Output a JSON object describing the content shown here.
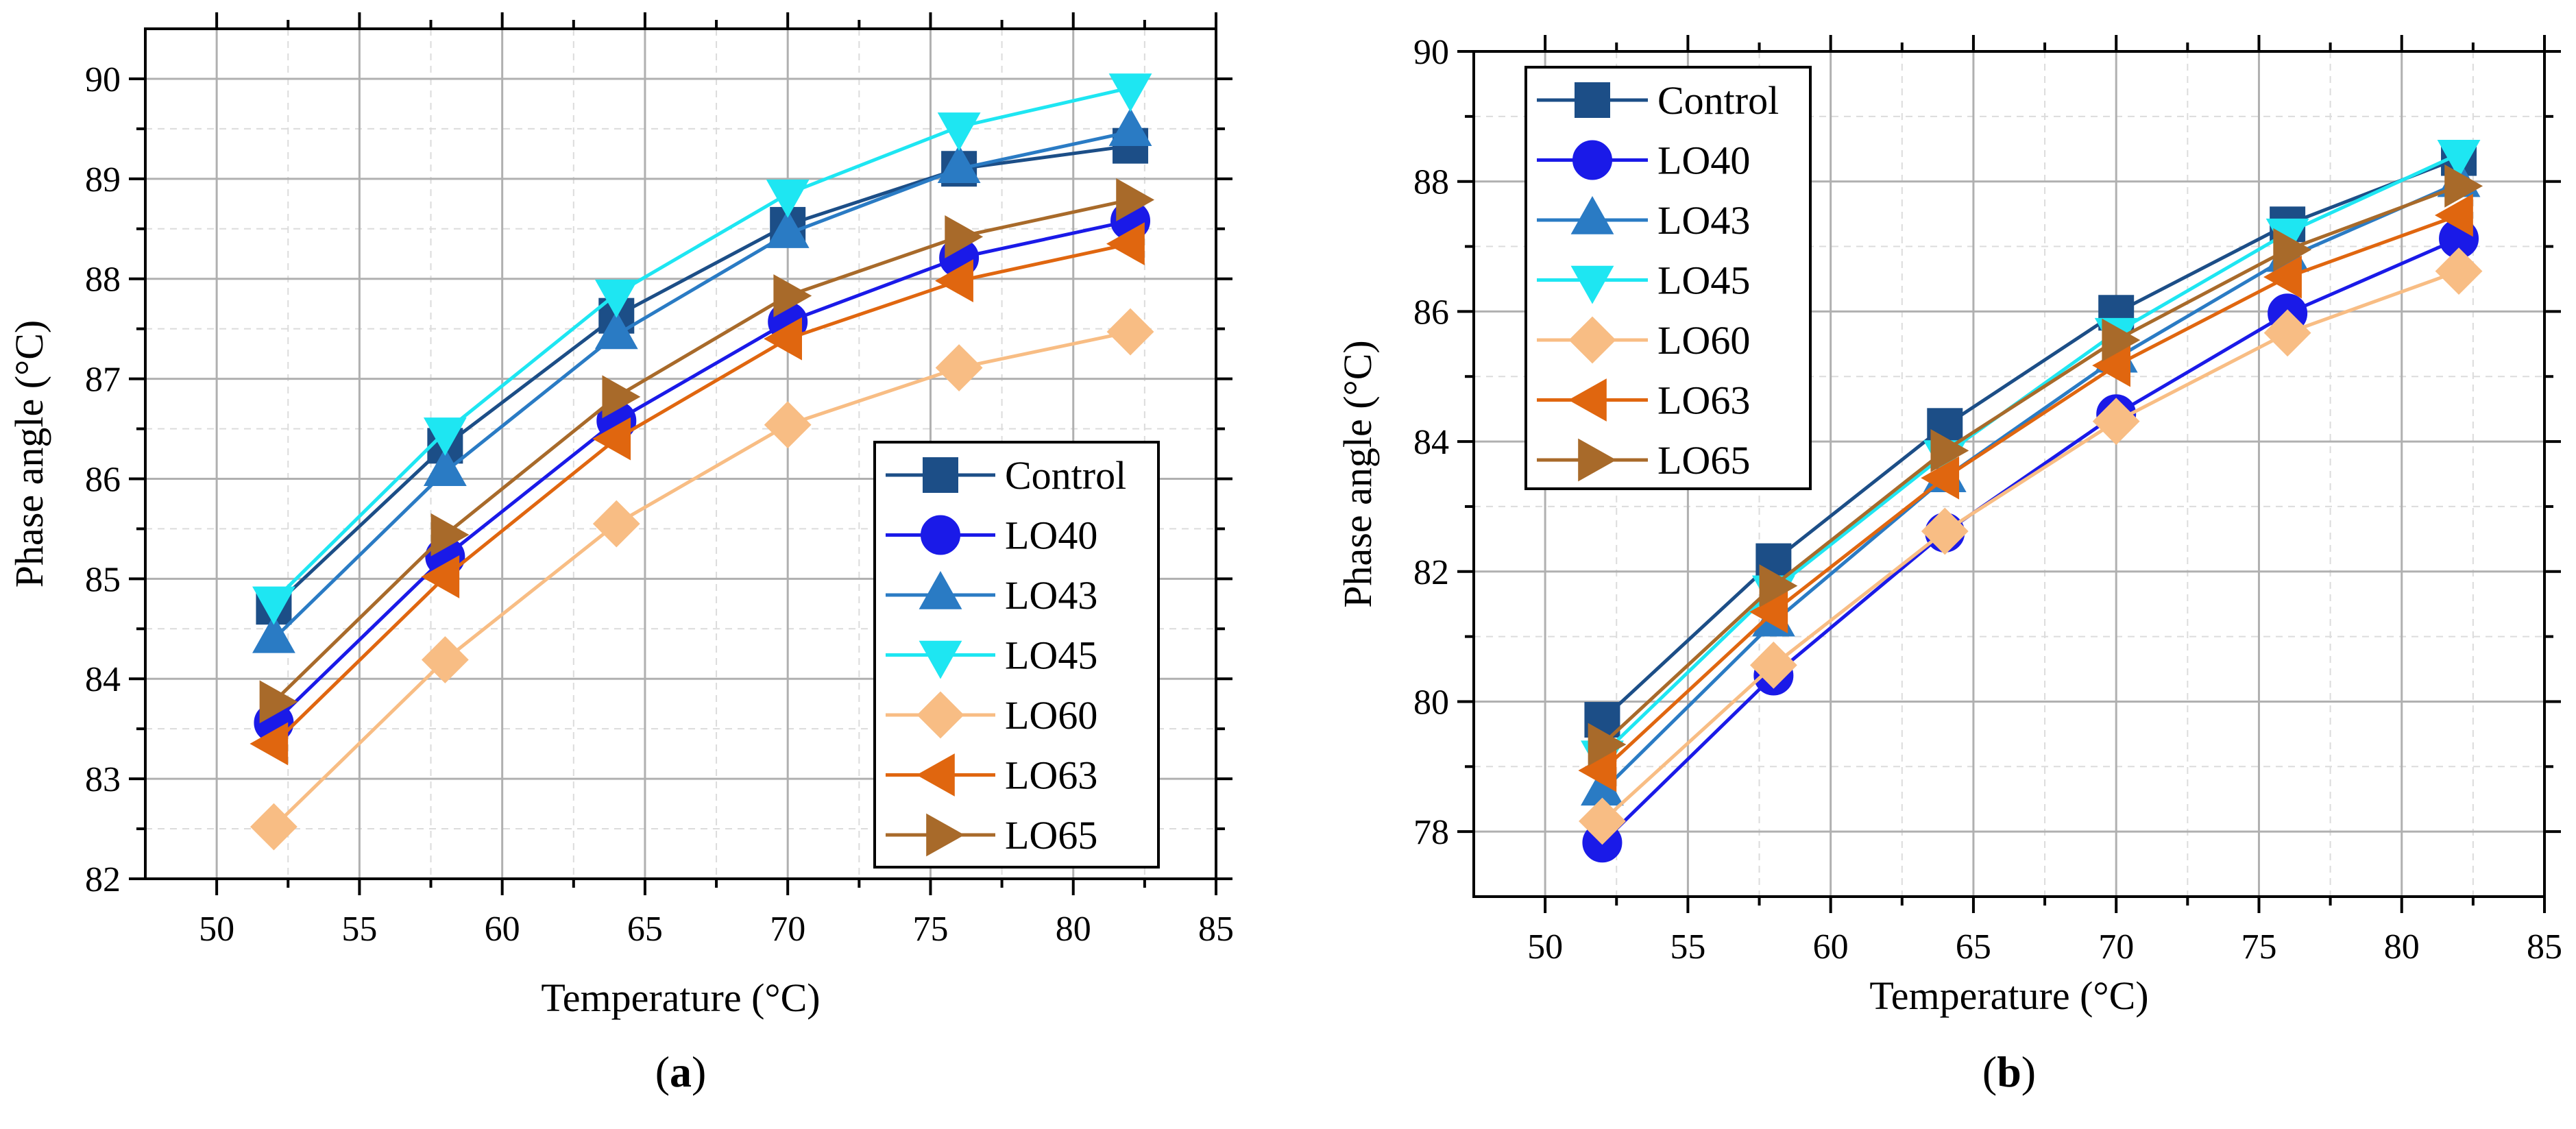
{
  "figure": {
    "background": "#ffffff",
    "grid_major_color": "#b0b0b0",
    "grid_minor_color": "#dcdcdc"
  },
  "chart_data": [
    {
      "type": "line",
      "panel_label": {
        "open": "(",
        "letter": "a",
        "close": ")"
      },
      "xlabel": "Temperature (°C)",
      "ylabel": "Phase angle (°C)",
      "xlim": [
        47.5,
        85
      ],
      "ylim": [
        82,
        90.5
      ],
      "xticks": [
        50,
        55,
        60,
        65,
        70,
        75,
        80,
        85
      ],
      "yticks": [
        82,
        83,
        84,
        85,
        86,
        87,
        88,
        89,
        90
      ],
      "grid": true,
      "legend_position": "bottom-right",
      "x": [
        52,
        58,
        64,
        70,
        76,
        82
      ],
      "series": [
        {
          "name": "Control",
          "color": "#1c4e87",
          "marker": "square",
          "values": [
            84.72,
            86.33,
            87.63,
            88.54,
            89.1,
            89.33
          ]
        },
        {
          "name": "LO40",
          "color": "#1a1ae8",
          "marker": "circle",
          "values": [
            83.56,
            85.22,
            86.58,
            87.57,
            88.21,
            88.58
          ]
        },
        {
          "name": "LO43",
          "color": "#2a7bc4",
          "marker": "triangle-up",
          "values": [
            84.4,
            86.07,
            87.44,
            88.45,
            89.1,
            89.47
          ]
        },
        {
          "name": "LO45",
          "color": "#1ee6f2",
          "marker": "triangle-down",
          "values": [
            84.78,
            86.47,
            87.85,
            88.85,
            89.52,
            89.91
          ]
        },
        {
          "name": "LO60",
          "color": "#f8bd84",
          "marker": "diamond",
          "values": [
            82.52,
            84.19,
            85.55,
            86.54,
            87.11,
            87.47
          ]
        },
        {
          "name": "LO63",
          "color": "#e0660f",
          "marker": "triangle-left",
          "values": [
            83.35,
            85.02,
            86.4,
            87.4,
            87.98,
            88.35
          ]
        },
        {
          "name": "LO65",
          "color": "#a86a2a",
          "marker": "triangle-right",
          "values": [
            83.77,
            85.44,
            86.82,
            87.83,
            88.42,
            88.79
          ]
        }
      ]
    },
    {
      "type": "line",
      "panel_label": {
        "open": "(",
        "letter": "b",
        "close": ")"
      },
      "xlabel": "Temperature (°C)",
      "ylabel": "Phase angle (°C)",
      "xlim": [
        47.5,
        85
      ],
      "ylim": [
        77,
        90
      ],
      "xticks": [
        50,
        55,
        60,
        65,
        70,
        75,
        80,
        85
      ],
      "yticks": [
        78,
        80,
        82,
        84,
        86,
        88,
        90
      ],
      "grid": true,
      "legend_position": "top-left",
      "x": [
        52,
        58,
        64,
        70,
        76,
        82
      ],
      "series": [
        {
          "name": "Control",
          "color": "#1c4e87",
          "marker": "square",
          "values": [
            79.72,
            82.16,
            84.24,
            85.98,
            87.34,
            88.36
          ]
        },
        {
          "name": "LO40",
          "color": "#1a1ae8",
          "marker": "circle",
          "values": [
            77.83,
            80.4,
            82.6,
            84.42,
            85.97,
            87.12
          ]
        },
        {
          "name": "LO43",
          "color": "#2a7bc4",
          "marker": "triangle-up",
          "values": [
            78.62,
            81.22,
            83.44,
            85.28,
            86.83,
            87.98
          ]
        },
        {
          "name": "LO45",
          "color": "#1ee6f2",
          "marker": "triangle-down",
          "values": [
            79.18,
            81.72,
            83.8,
            85.68,
            87.21,
            88.42
          ]
        },
        {
          "name": "LO60",
          "color": "#f8bd84",
          "marker": "diamond",
          "values": [
            78.16,
            80.56,
            82.62,
            84.31,
            85.67,
            86.62
          ]
        },
        {
          "name": "LO63",
          "color": "#e0660f",
          "marker": "triangle-left",
          "values": [
            78.94,
            81.38,
            83.44,
            85.17,
            86.53,
            87.48
          ]
        },
        {
          "name": "LO65",
          "color": "#a86a2a",
          "marker": "triangle-right",
          "values": [
            79.34,
            81.78,
            83.86,
            85.56,
            86.95,
            87.93
          ]
        }
      ]
    }
  ]
}
